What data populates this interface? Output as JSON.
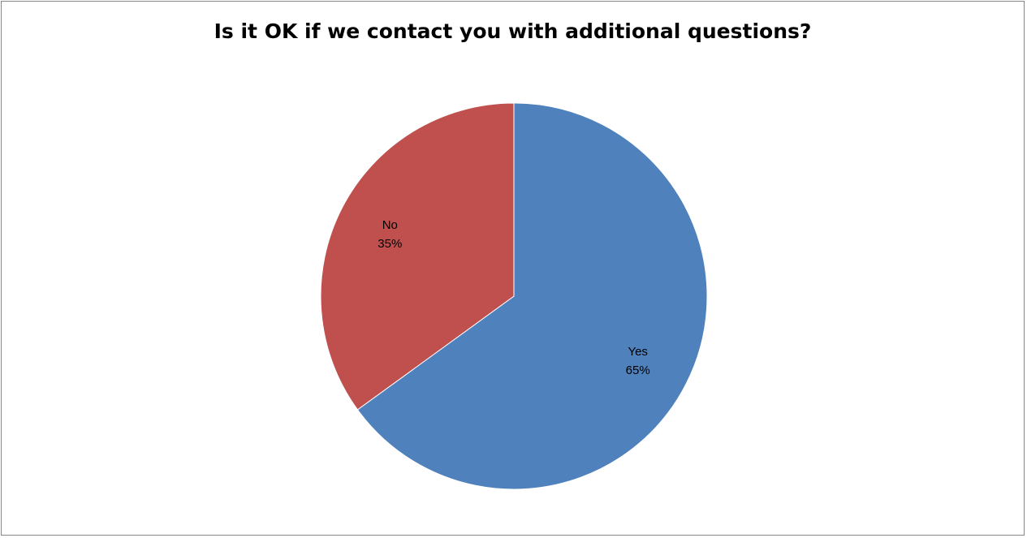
{
  "chart_data": {
    "type": "pie",
    "title": "Is it OK if we contact you with additional questions?",
    "slices": [
      {
        "label": "Yes",
        "value": 65,
        "percent_label": "65%",
        "color": "#4F81BD"
      },
      {
        "label": "No",
        "value": 35,
        "percent_label": "35%",
        "color": "#C0504D"
      }
    ],
    "start_angle_deg": 0,
    "direction": "clockwise",
    "legend": "none",
    "data_labels": "inside"
  }
}
